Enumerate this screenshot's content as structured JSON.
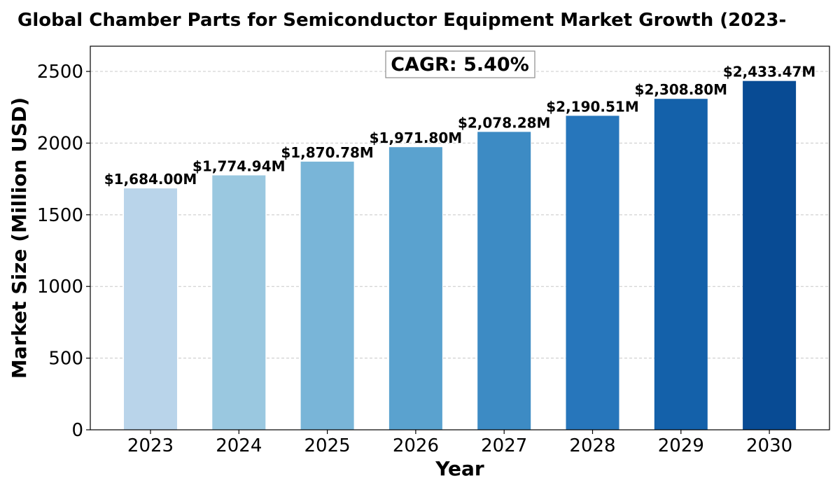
{
  "chart_data": {
    "type": "bar",
    "title": "Global Chamber Parts for Semiconductor Equipment Market Growth (2023-",
    "xlabel": "Year",
    "ylabel": "Market Size (Million USD)",
    "categories": [
      "2023",
      "2024",
      "2025",
      "2026",
      "2027",
      "2028",
      "2029",
      "2030"
    ],
    "values": [
      1684.0,
      1774.94,
      1870.78,
      1971.8,
      2078.28,
      2190.51,
      2308.8,
      2433.47
    ],
    "data_labels": [
      "$1,684.00M",
      "$1,774.94M",
      "$1,870.78M",
      "$1,971.80M",
      "$2,078.28M",
      "$2,190.51M",
      "$2,308.80M",
      "$2,433.47M"
    ],
    "bar_colors": [
      "#b9d4ea",
      "#9ac8e0",
      "#79b5d8",
      "#5aa2cf",
      "#3d8bc4",
      "#2776bb",
      "#1461aa",
      "#084b94"
    ],
    "ylim": [
      0,
      2676
    ],
    "yticks": [
      0,
      500,
      1000,
      1500,
      2000,
      2500
    ],
    "grid": true,
    "annotation": "CAGR: 5.40%"
  }
}
